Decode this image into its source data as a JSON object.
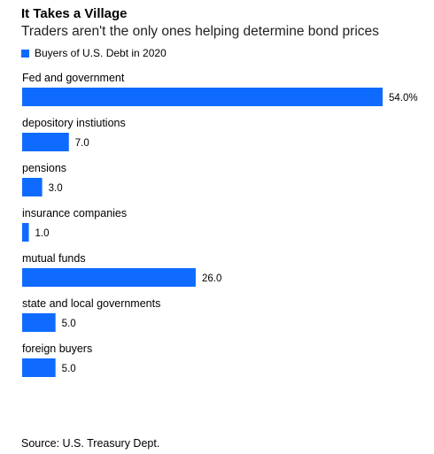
{
  "title": "It Takes a Village",
  "subtitle": "Traders aren't the only ones helping determine bond prices",
  "source": "Source: U.S. Treasury Dept.",
  "colors": {
    "bar": "#0f6bff"
  },
  "chart_data": {
    "type": "bar",
    "orientation": "horizontal",
    "categories": [
      "Fed and government",
      "depository instiutions",
      "pensions",
      "insurance companies",
      "mutual funds",
      "state and local governments",
      "foreign buyers"
    ],
    "series": [
      {
        "name": "Buyers of U.S. Debt in 2020",
        "values": [
          54.0,
          7.0,
          3.0,
          1.0,
          26.0,
          5.0,
          5.0
        ]
      }
    ],
    "value_labels": [
      "54.0%",
      "7.0",
      "3.0",
      "1.0",
      "26.0",
      "5.0",
      "5.0"
    ],
    "xlim": [
      0,
      54
    ],
    "grid": false,
    "legend_position": "top-left"
  }
}
